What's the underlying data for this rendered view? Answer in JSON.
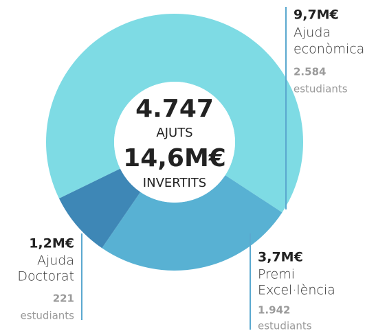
{
  "chart_data": {
    "type": "donut",
    "categories": [
      [
        "Ajuda",
        "econòmica"
      ],
      [
        "Premi",
        "Excel·lència"
      ],
      [
        "Ajuda",
        "Doctorat"
      ]
    ],
    "values": [
      9.7,
      3.7,
      1.2
    ],
    "value_labels": [
      "9,7M€",
      "3,7M€",
      "1,2M€"
    ],
    "colors": [
      "#7edbe4",
      "#58b1d3",
      "#3e87b6"
    ],
    "students": [
      "2.584",
      "1.942",
      "221"
    ],
    "students_caption": "estudiants",
    "center": [
      "4.747",
      "AJUTS",
      "14,6M€",
      "INVERTITS"
    ]
  }
}
